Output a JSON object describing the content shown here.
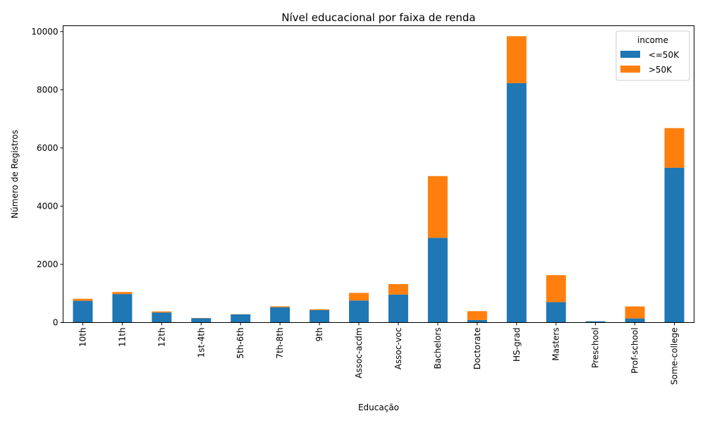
{
  "chart_data": {
    "type": "bar",
    "stacked": true,
    "title": "Nível educacional por faixa de renda",
    "xlabel": "Educação",
    "ylabel": "Número de Registros",
    "ylim": [
      0,
      10200
    ],
    "yticks": [
      0,
      2000,
      4000,
      6000,
      8000,
      10000
    ],
    "grid": false,
    "legend": {
      "title": "income",
      "position": "top-right"
    },
    "categories": [
      "10th",
      "11th",
      "12th",
      "1st-4th",
      "5th-6th",
      "7th-8th",
      "9th",
      "Assoc-acdm",
      "Assoc-voc",
      "Bachelors",
      "Doctorate",
      "HS-grad",
      "Masters",
      "Preschool",
      "Prof-school",
      "Some-college"
    ],
    "series": [
      {
        "name": " <=50K",
        "color": "#1f77b4",
        "values": [
          748,
          979,
          346,
          150,
          280,
          525,
          424,
          756,
          962,
          2913,
          87,
          8227,
          701,
          44,
          142,
          5320
        ]
      },
      {
        "name": " >50K",
        "color": "#ff7f0e",
        "values": [
          69,
          70,
          35,
          8,
          6,
          34,
          29,
          263,
          359,
          2120,
          305,
          1613,
          929,
          2,
          411,
          1363
        ]
      }
    ]
  }
}
